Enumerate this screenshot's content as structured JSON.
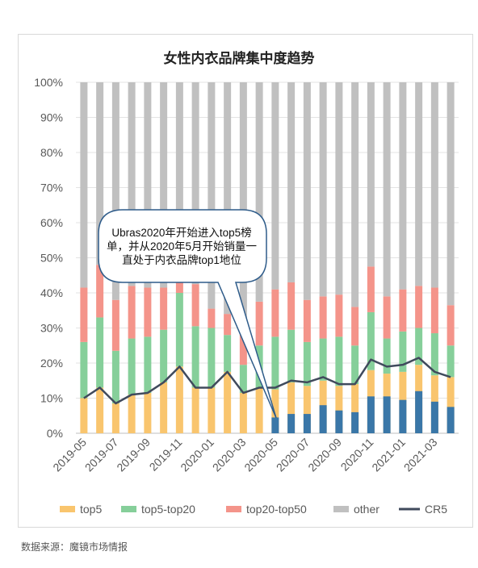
{
  "title": "女性内衣品牌集中度趋势",
  "source": "数据来源：魔镜市场情报",
  "annotation": "Ubras2020年开始进入top5榜单，并从2020年5月开始销量一直处于内衣品牌top1地位",
  "colors": {
    "top5": "#f9c56e",
    "top5_top20": "#86cf9a",
    "top20_top50": "#f4948a",
    "other": "#c0c0c0",
    "cr5": "#404a5c",
    "ubras": "#3a77a8"
  },
  "chart_data": {
    "type": "bar",
    "stacked": true,
    "ylim": [
      0,
      100
    ],
    "yticks": [
      "0%",
      "10%",
      "20%",
      "30%",
      "40%",
      "50%",
      "60%",
      "70%",
      "80%",
      "90%",
      "100%"
    ],
    "categories": [
      "2019-05",
      "2019-06",
      "2019-07",
      "2019-08",
      "2019-09",
      "2019-10",
      "2019-11",
      "2019-12",
      "2020-01",
      "2020-02",
      "2020-03",
      "2020-04",
      "2020-05",
      "2020-06",
      "2020-07",
      "2020-08",
      "2020-09",
      "2020-10",
      "2020-11",
      "2020-12",
      "2021-01",
      "2021-02",
      "2021-03",
      "2021-04"
    ],
    "xtick_labels": [
      "2019-05",
      "2019-07",
      "2019-09",
      "2019-11",
      "2020-01",
      "2020-03",
      "2020-05",
      "2020-07",
      "2020-09",
      "2020-11",
      "2021-01",
      "2021-03"
    ],
    "series": [
      {
        "name": "top5",
        "values": [
          10,
          13,
          8.5,
          11,
          11.5,
          14.5,
          19,
          13,
          13,
          17.5,
          11.5,
          13,
          12.5,
          14.5,
          13.5,
          15,
          13.5,
          14,
          18,
          17,
          17.5,
          19.5,
          16.5,
          16
        ]
      },
      {
        "name": "top5-top20",
        "values": [
          16,
          20,
          15,
          16,
          16,
          15,
          21,
          17.5,
          17,
          10.5,
          8,
          12,
          15,
          15,
          12.5,
          12,
          14,
          11,
          16.5,
          10,
          11.5,
          10.5,
          12,
          9
        ]
      },
      {
        "name": "top20-top50",
        "values": [
          15.5,
          15,
          14.5,
          15,
          14,
          12,
          12,
          12,
          5.5,
          6,
          9.5,
          12.5,
          13.5,
          13.5,
          12,
          12,
          12,
          11,
          13,
          12,
          12,
          12,
          13,
          11.5
        ]
      },
      {
        "name": "other",
        "values": [
          58.5,
          52,
          62,
          58,
          58.5,
          58.5,
          48,
          57.5,
          64.5,
          66,
          71,
          62.5,
          59,
          57,
          62,
          61,
          60.5,
          64,
          52.5,
          61,
          59,
          58,
          58.5,
          63.5
        ]
      }
    ],
    "ubras_values": [
      null,
      null,
      null,
      null,
      null,
      null,
      null,
      null,
      null,
      null,
      null,
      null,
      4.5,
      5.5,
      5.5,
      8,
      6.5,
      6,
      10.5,
      10.5,
      9.5,
      12,
      9,
      7.5
    ],
    "cr5": {
      "name": "CR5",
      "values": [
        10,
        13,
        8.5,
        11,
        11.5,
        14.5,
        19,
        13,
        13,
        17.5,
        11.5,
        13,
        13,
        15,
        14.5,
        16,
        14,
        14,
        21,
        19,
        19.5,
        21.5,
        17.5,
        16
      ]
    },
    "legend": [
      "top5",
      "top5-top20",
      "top20-top50",
      "other",
      "CR5"
    ],
    "legend_position": "bottom",
    "grid": true
  }
}
